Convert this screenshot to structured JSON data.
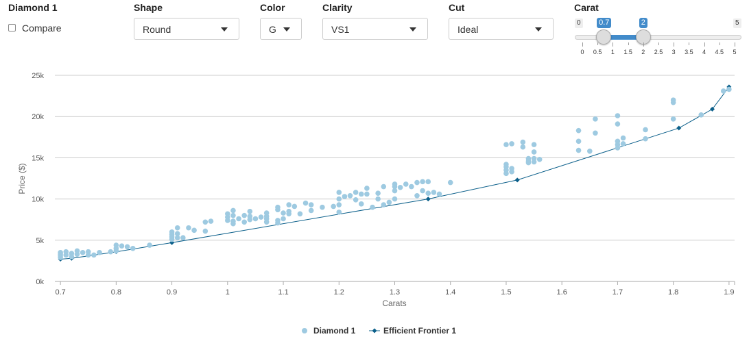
{
  "controls": {
    "diamond_title": "Diamond 1",
    "compare_label": "Compare",
    "shape": {
      "label": "Shape",
      "value": "Round"
    },
    "color": {
      "label": "Color",
      "value": "G"
    },
    "clarity": {
      "label": "Clarity",
      "value": "VS1"
    },
    "cut": {
      "label": "Cut",
      "value": "Ideal"
    },
    "carat": {
      "label": "Carat",
      "min_label": "0",
      "max_label": "5",
      "low_label": "0.7",
      "high_label": "2",
      "min": 0,
      "max": 5,
      "low": 0.7,
      "high": 2,
      "ticks": [
        "0",
        "0.5",
        "1",
        "1.5",
        "2",
        "2.5",
        "3",
        "3.5",
        "4",
        "4.5",
        "5"
      ]
    }
  },
  "colors": {
    "points": "#9ecae1",
    "frontier": "#0b5f8a",
    "grid": "#cccccc",
    "slider_accent": "#428bca"
  },
  "chart_data": {
    "type": "scatter",
    "xlabel": "Carats",
    "ylabel": "Price ($)",
    "xlim": [
      0.69,
      1.91
    ],
    "ylim": [
      0,
      25000
    ],
    "x_ticks": [
      0.7,
      0.8,
      0.9,
      1,
      1.1,
      1.2,
      1.3,
      1.4,
      1.5,
      1.6,
      1.7,
      1.8,
      1.9
    ],
    "x_tick_labels": [
      "0.7",
      "0.8",
      "0.9",
      "1",
      "1.1",
      "1.2",
      "1.3",
      "1.4",
      "1.5",
      "1.6",
      "1.7",
      "1.8",
      "1.9"
    ],
    "y_ticks": [
      0,
      5000,
      10000,
      15000,
      20000,
      25000
    ],
    "y_tick_labels": [
      "0k",
      "5k",
      "10k",
      "15k",
      "20k",
      "25k"
    ],
    "grid": true,
    "legend_position": "bottom-center",
    "series": [
      {
        "name": "Diamond 1",
        "kind": "scatter",
        "points": [
          [
            0.7,
            3500
          ],
          [
            0.7,
            3300
          ],
          [
            0.7,
            3100
          ],
          [
            0.7,
            2900
          ],
          [
            0.71,
            3600
          ],
          [
            0.71,
            3200
          ],
          [
            0.72,
            3400
          ],
          [
            0.72,
            3000
          ],
          [
            0.73,
            3700
          ],
          [
            0.73,
            3300
          ],
          [
            0.74,
            3500
          ],
          [
            0.75,
            3600
          ],
          [
            0.75,
            3200
          ],
          [
            0.76,
            3200
          ],
          [
            0.77,
            3500
          ],
          [
            0.79,
            3600
          ],
          [
            0.8,
            4400
          ],
          [
            0.8,
            4000
          ],
          [
            0.8,
            3700
          ],
          [
            0.81,
            4300
          ],
          [
            0.82,
            4200
          ],
          [
            0.83,
            4000
          ],
          [
            0.86,
            4400
          ],
          [
            0.9,
            6000
          ],
          [
            0.9,
            5700
          ],
          [
            0.9,
            5400
          ],
          [
            0.9,
            5100
          ],
          [
            0.91,
            6500
          ],
          [
            0.91,
            5800
          ],
          [
            0.91,
            5300
          ],
          [
            0.92,
            5300
          ],
          [
            0.93,
            6500
          ],
          [
            0.94,
            6200
          ],
          [
            0.96,
            7200
          ],
          [
            0.96,
            6100
          ],
          [
            0.97,
            7300
          ],
          [
            1.0,
            8200
          ],
          [
            1.0,
            7800
          ],
          [
            1.0,
            7400
          ],
          [
            1.01,
            8600
          ],
          [
            1.01,
            8000
          ],
          [
            1.01,
            7300
          ],
          [
            1.01,
            7000
          ],
          [
            1.02,
            7600
          ],
          [
            1.03,
            8000
          ],
          [
            1.03,
            7200
          ],
          [
            1.04,
            8500
          ],
          [
            1.04,
            7900
          ],
          [
            1.04,
            7500
          ],
          [
            1.05,
            7600
          ],
          [
            1.06,
            7800
          ],
          [
            1.07,
            8300
          ],
          [
            1.07,
            7900
          ],
          [
            1.07,
            7600
          ],
          [
            1.07,
            7200
          ],
          [
            1.09,
            9000
          ],
          [
            1.09,
            8700
          ],
          [
            1.09,
            7400
          ],
          [
            1.09,
            7100
          ],
          [
            1.1,
            8300
          ],
          [
            1.1,
            7600
          ],
          [
            1.11,
            9300
          ],
          [
            1.11,
            8500
          ],
          [
            1.11,
            8200
          ],
          [
            1.12,
            9100
          ],
          [
            1.13,
            8200
          ],
          [
            1.14,
            9500
          ],
          [
            1.15,
            9300
          ],
          [
            1.15,
            8600
          ],
          [
            1.17,
            9000
          ],
          [
            1.19,
            9100
          ],
          [
            1.2,
            10800
          ],
          [
            1.2,
            10000
          ],
          [
            1.2,
            9300
          ],
          [
            1.2,
            8400
          ],
          [
            1.21,
            10300
          ],
          [
            1.22,
            10400
          ],
          [
            1.23,
            10800
          ],
          [
            1.23,
            9900
          ],
          [
            1.24,
            10600
          ],
          [
            1.24,
            9400
          ],
          [
            1.25,
            11300
          ],
          [
            1.25,
            10600
          ],
          [
            1.26,
            9000
          ],
          [
            1.27,
            10700
          ],
          [
            1.27,
            10000
          ],
          [
            1.28,
            11500
          ],
          [
            1.28,
            9300
          ],
          [
            1.29,
            9600
          ],
          [
            1.3,
            11800
          ],
          [
            1.3,
            11500
          ],
          [
            1.3,
            11000
          ],
          [
            1.3,
            10000
          ],
          [
            1.31,
            11400
          ],
          [
            1.32,
            11800
          ],
          [
            1.33,
            11500
          ],
          [
            1.34,
            12000
          ],
          [
            1.34,
            10400
          ],
          [
            1.35,
            12100
          ],
          [
            1.35,
            11000
          ],
          [
            1.36,
            12100
          ],
          [
            1.36,
            10700
          ],
          [
            1.37,
            10800
          ],
          [
            1.38,
            10600
          ],
          [
            1.4,
            12000
          ],
          [
            1.5,
            16600
          ],
          [
            1.5,
            14200
          ],
          [
            1.5,
            13900
          ],
          [
            1.5,
            13500
          ],
          [
            1.5,
            13100
          ],
          [
            1.51,
            16700
          ],
          [
            1.51,
            13700
          ],
          [
            1.51,
            13300
          ],
          [
            1.53,
            16900
          ],
          [
            1.53,
            16300
          ],
          [
            1.54,
            14900
          ],
          [
            1.54,
            14600
          ],
          [
            1.54,
            14400
          ],
          [
            1.55,
            16600
          ],
          [
            1.55,
            15700
          ],
          [
            1.55,
            14900
          ],
          [
            1.55,
            14500
          ],
          [
            1.56,
            14800
          ],
          [
            1.63,
            18300
          ],
          [
            1.63,
            17000
          ],
          [
            1.63,
            15900
          ],
          [
            1.65,
            15800
          ],
          [
            1.66,
            19700
          ],
          [
            1.66,
            18000
          ],
          [
            1.7,
            20100
          ],
          [
            1.7,
            19100
          ],
          [
            1.7,
            17000
          ],
          [
            1.7,
            16600
          ],
          [
            1.7,
            16200
          ],
          [
            1.71,
            17400
          ],
          [
            1.71,
            16700
          ],
          [
            1.75,
            18400
          ],
          [
            1.75,
            17300
          ],
          [
            1.8,
            22000
          ],
          [
            1.8,
            21700
          ],
          [
            1.8,
            19700
          ],
          [
            1.85,
            20200
          ],
          [
            1.89,
            23100
          ],
          [
            1.9,
            23300
          ]
        ]
      },
      {
        "name": "Efficient Frontier 1",
        "kind": "line",
        "points": [
          [
            0.7,
            2700
          ],
          [
            0.72,
            2800
          ],
          [
            0.8,
            3600
          ],
          [
            0.9,
            4700
          ],
          [
            1.36,
            10000
          ],
          [
            1.52,
            12300
          ],
          [
            1.81,
            18600
          ],
          [
            1.87,
            20900
          ],
          [
            1.9,
            23600
          ]
        ]
      }
    ]
  }
}
